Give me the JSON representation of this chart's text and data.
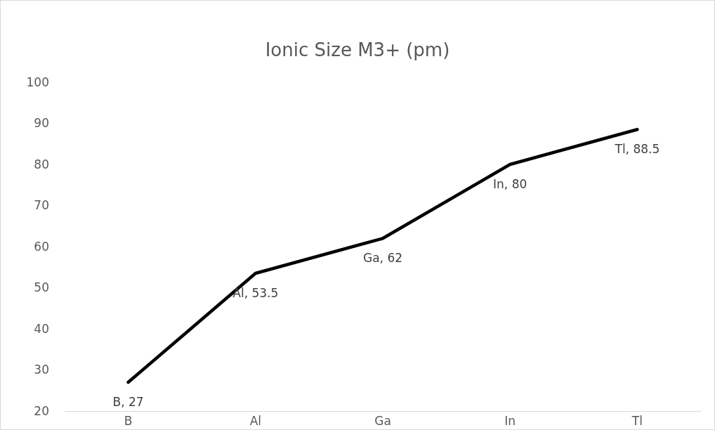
{
  "chart_data": {
    "type": "line",
    "title": "Ionic Size M3+ (pm)",
    "categories": [
      "B",
      "Al",
      "Ga",
      "In",
      "Tl"
    ],
    "series": [
      {
        "color": "#000000",
        "values": [
          27,
          53.5,
          62,
          80,
          88.5
        ],
        "value_labels": [
          "B, 27",
          "Al, 53.5",
          "Ga, 62",
          "In, 80",
          "Tl, 88.5"
        ]
      }
    ],
    "ylim": [
      20,
      100
    ],
    "yticks": [
      20,
      30,
      40,
      50,
      60,
      70,
      80,
      90,
      100
    ],
    "grid": false,
    "marker": "none",
    "line_style": "solid"
  }
}
